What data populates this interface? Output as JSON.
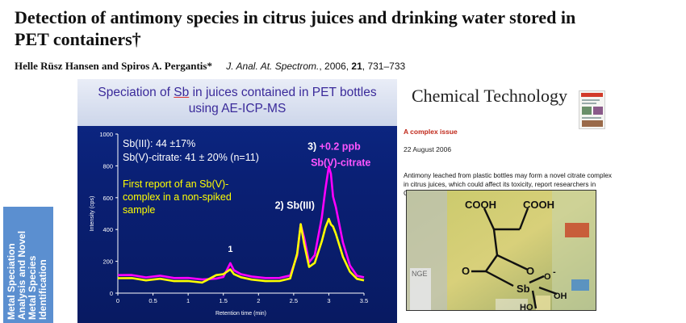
{
  "paper": {
    "title": "Detection of antimony species in citrus juices and drinking water stored in PET containers†",
    "authors": "Helle Rüsz Hansen and Spiros A. Pergantis*",
    "journal": "J. Anal. At. Spectrom.",
    "year_prefix": ",  2006, ",
    "volume": "21",
    "pages": ", 731–733"
  },
  "slide": {
    "title_pre": "Speciation of ",
    "title_sb": "Sb",
    "title_post": " in juices contained in PET bottles",
    "title_line2": "using AE-ICP-MS",
    "stat1": "Sb(III): 44 ±17%",
    "stat2": "Sb(V)-citrate: 41 ± 20% (n=11)",
    "note_lines": [
      "First report of an Sb(V)-",
      "complex in a non-spiked",
      "sample"
    ],
    "peak1_label": "1",
    "peak2_label": "2) Sb(III)",
    "peak3_label_a": "3) ",
    "peak3_label_b": "+0.2 ppb",
    "peak3_label_c": "Sb(V)-citrate"
  },
  "sidebar": {
    "text": "Metal Speciation Analysis and Novel Metal Species Identification"
  },
  "news": {
    "brand": "Chemical Technology",
    "issue": "A complex issue",
    "date": "22 August 2006",
    "body": "Antimony leached from plastic bottles may form a novel citrate complex in citrus juices, which could affect its toxicity, report researchers in Greece.",
    "structure_labels": {
      "cooh1": "COOH",
      "cooh2": "COOH",
      "o_ring": "O",
      "o_carbonyl": "O",
      "sb": "Sb",
      "o_minus": "O",
      "minus": "-",
      "ho": "HO",
      "oh": "OH",
      "nge": "NGE"
    }
  },
  "chart_data": {
    "type": "line",
    "xlabel": "Retention time (min)",
    "ylabel": "Intensity (cps)",
    "xlim": [
      0,
      3.5
    ],
    "ylim": [
      0,
      1000
    ],
    "xticks": [
      "0",
      "0.5",
      "1",
      "1.5",
      "2",
      "2.5",
      "3",
      "3.5"
    ],
    "yticks": [
      "0",
      "200",
      "400",
      "600",
      "800",
      "1000"
    ],
    "series": [
      {
        "color": "#ff00ff",
        "x": [
          0.0,
          0.2,
          0.4,
          0.6,
          0.8,
          1.0,
          1.2,
          1.4,
          1.5,
          1.6,
          1.65,
          1.75,
          1.9,
          2.1,
          2.3,
          2.45,
          2.55,
          2.6,
          2.65,
          2.72,
          2.8,
          2.9,
          2.95,
          3.0,
          3.03,
          3.06,
          3.1,
          3.2,
          3.3,
          3.4,
          3.5
        ],
        "y": [
          95,
          100,
          90,
          105,
          95,
          100,
          95,
          105,
          120,
          170,
          130,
          110,
          100,
          95,
          100,
          120,
          250,
          450,
          330,
          180,
          230,
          470,
          650,
          800,
          760,
          620,
          560,
          300,
          160,
          100,
          95
        ]
      },
      {
        "color": "#ffff00",
        "x": [
          0.0,
          0.2,
          0.4,
          0.6,
          0.8,
          1.0,
          1.2,
          1.4,
          1.5,
          1.6,
          1.65,
          1.75,
          1.9,
          2.1,
          2.3,
          2.45,
          2.55,
          2.6,
          2.65,
          2.72,
          2.8,
          2.9,
          2.95,
          3.0,
          3.03,
          3.06,
          3.1,
          3.2,
          3.3,
          3.4,
          3.5
        ],
        "y": [
          85,
          90,
          80,
          95,
          85,
          90,
          85,
          95,
          105,
          140,
          115,
          100,
          90,
          85,
          90,
          110,
          230,
          420,
          300,
          160,
          190,
          330,
          420,
          480,
          450,
          400,
          360,
          220,
          130,
          90,
          85
        ]
      }
    ]
  },
  "colors": {
    "slide_bg": "#0a2075",
    "title_text": "#3a2a9a",
    "stat_text": "#ffffff",
    "note_text": "#ffff00",
    "peak3_plus": "#ff55ff",
    "sidebar_bg": "#5b8fd0",
    "news_issue": "#c0281a"
  }
}
